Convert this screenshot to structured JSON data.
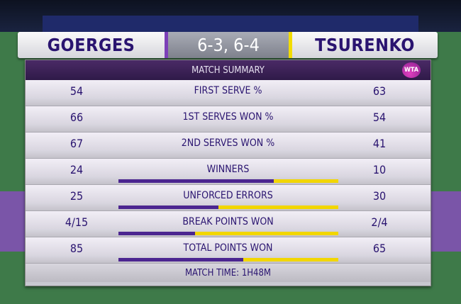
{
  "header": {
    "player_left": "GOERGES",
    "score": "6-3, 6-4",
    "player_right": "TSURENKO"
  },
  "summary": {
    "title": "MATCH SUMMARY",
    "logo": "WTA",
    "rows": [
      {
        "label": "FIRST SERVE %",
        "left": "54",
        "right": "63",
        "bar": false
      },
      {
        "label": "1ST SERVES WON %",
        "left": "66",
        "right": "54",
        "bar": false
      },
      {
        "label": "2ND SERVES WON %",
        "left": "67",
        "right": "41",
        "bar": false
      },
      {
        "label": "WINNERS",
        "left": "24",
        "right": "10",
        "bar": true
      },
      {
        "label": "UNFORCED ERRORS",
        "left": "25",
        "right": "30",
        "bar": true
      },
      {
        "label": "BREAK POINTS WON",
        "left": "4/15",
        "right": "2/4",
        "bar": true
      },
      {
        "label": "TOTAL POINTS WON",
        "left": "85",
        "right": "65",
        "bar": true
      }
    ],
    "match_time": "MATCH TIME: 1H48M"
  },
  "colors": {
    "left_player": "#4b2590",
    "right_player": "#f2d600",
    "text": "#2a1470"
  }
}
